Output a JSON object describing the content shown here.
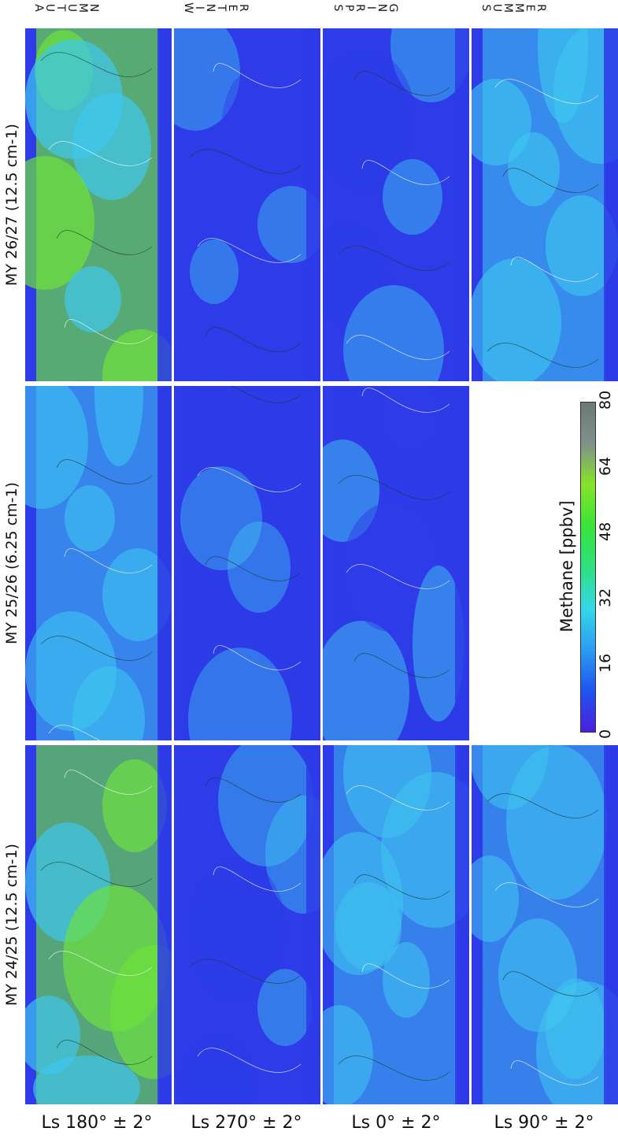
{
  "columns": [
    {
      "season": "AUTUMN",
      "ls": "Ls 180° ± 2°"
    },
    {
      "season": "WINTER",
      "ls": "Ls 270° ± 2°"
    },
    {
      "season": "SPRING",
      "ls": "Ls 0° ± 2°"
    },
    {
      "season": "SUMMER",
      "ls": "Ls 90° ± 2°"
    }
  ],
  "rows": [
    {
      "label": "MY 26/27 (12.5 cm-1)"
    },
    {
      "label": "MY 25/26 (6.25 cm-1)"
    },
    {
      "label": "MY 24/25 (12.5 cm-1)"
    }
  ],
  "panel_levels": [
    [
      0.7,
      0.18,
      0.25,
      0.55
    ],
    [
      0.45,
      0.15,
      0.3,
      null
    ],
    [
      0.65,
      0.2,
      0.4,
      0.4
    ]
  ],
  "colorbar": {
    "title": "Methane [ppbv]",
    "ticks": [
      "0",
      "16",
      "32",
      "48",
      "64",
      "80"
    ],
    "min": 0,
    "max": 80,
    "stops": [
      "#4b1fe0",
      "#1e55f0",
      "#2c9cf2",
      "#35d8e8",
      "#2ee07e",
      "#39e33a",
      "#86e428",
      "#80908a",
      "#6c7a76"
    ]
  },
  "colors": {
    "low": "#2d3be8",
    "mid": "#3fc7f0",
    "high": "#6ee13b",
    "relief": "#ffffff"
  }
}
